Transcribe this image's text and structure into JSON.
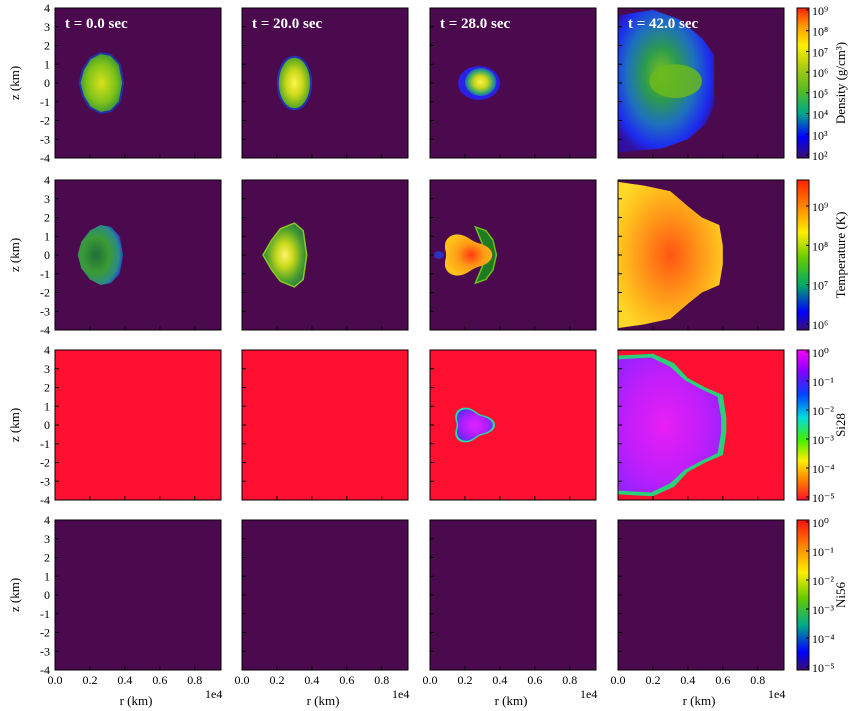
{
  "chart_data": {
    "type": "heatmap",
    "times": [
      "t = 0.0 sec",
      "t = 20.0 sec",
      "t = 28.0 sec",
      "t = 42.0 sec"
    ],
    "rows": [
      {
        "name": "Density",
        "colorbar_label": "Density",
        "colorbar_unit": "(g/cm³)",
        "cmap": [
          "#00007f",
          "#0000ff",
          "#00aa88",
          "#55bb22",
          "#aacc11",
          "#ffee00",
          "#ff9900",
          "#ff2200"
        ],
        "ticks": [
          "10⁹",
          "10⁸",
          "10⁷",
          "10⁶",
          "10⁵",
          "10⁴",
          "10³",
          "10²"
        ],
        "background": "#4b0a4d"
      },
      {
        "name": "Temperature",
        "colorbar_label": "Temperature (K)",
        "cmap": [
          "#3b0e74",
          "#0000ff",
          "#00aa66",
          "#66cc00",
          "#ffee00",
          "#ff8800",
          "#ff2200"
        ],
        "ticks": [
          "10⁹",
          "10⁸",
          "10⁷",
          "10⁶"
        ],
        "background": "#4b0a4d"
      },
      {
        "name": "Si28",
        "colorbar_label": "Si28",
        "cmap": [
          "#ff1030",
          "#ff7700",
          "#ffee00",
          "#44ee00",
          "#00dddd",
          "#0044ff",
          "#8800ff",
          "#ff00ff"
        ],
        "ticks": [
          "10⁰",
          "10⁻¹",
          "10⁻²",
          "10⁻³",
          "10⁻⁴",
          "10⁻⁵"
        ],
        "background": "#ff1030"
      },
      {
        "name": "Ni56",
        "colorbar_label": "Ni56",
        "cmap": [
          "#3b0e74",
          "#0000ff",
          "#00aa88",
          "#66cc00",
          "#ffee00",
          "#ff8800",
          "#ff1010"
        ],
        "ticks": [
          "10⁰",
          "10⁻¹",
          "10⁻²",
          "10⁻³",
          "10⁻⁴",
          "10⁻⁵"
        ],
        "background": "#4b0a4d"
      }
    ],
    "ylabel": "z  (km)",
    "xlabel": "r  (km)",
    "x_offset_label": "1e4",
    "yticks": [
      "4",
      "3",
      "2",
      "1",
      "0",
      "-1",
      "-2",
      "-3",
      "-4"
    ],
    "xticks": [
      "0.0",
      "0.2",
      "0.4",
      "0.6",
      "0.8"
    ],
    "xlim": [
      0,
      0.95
    ],
    "ylim": [
      -4,
      4
    ]
  }
}
